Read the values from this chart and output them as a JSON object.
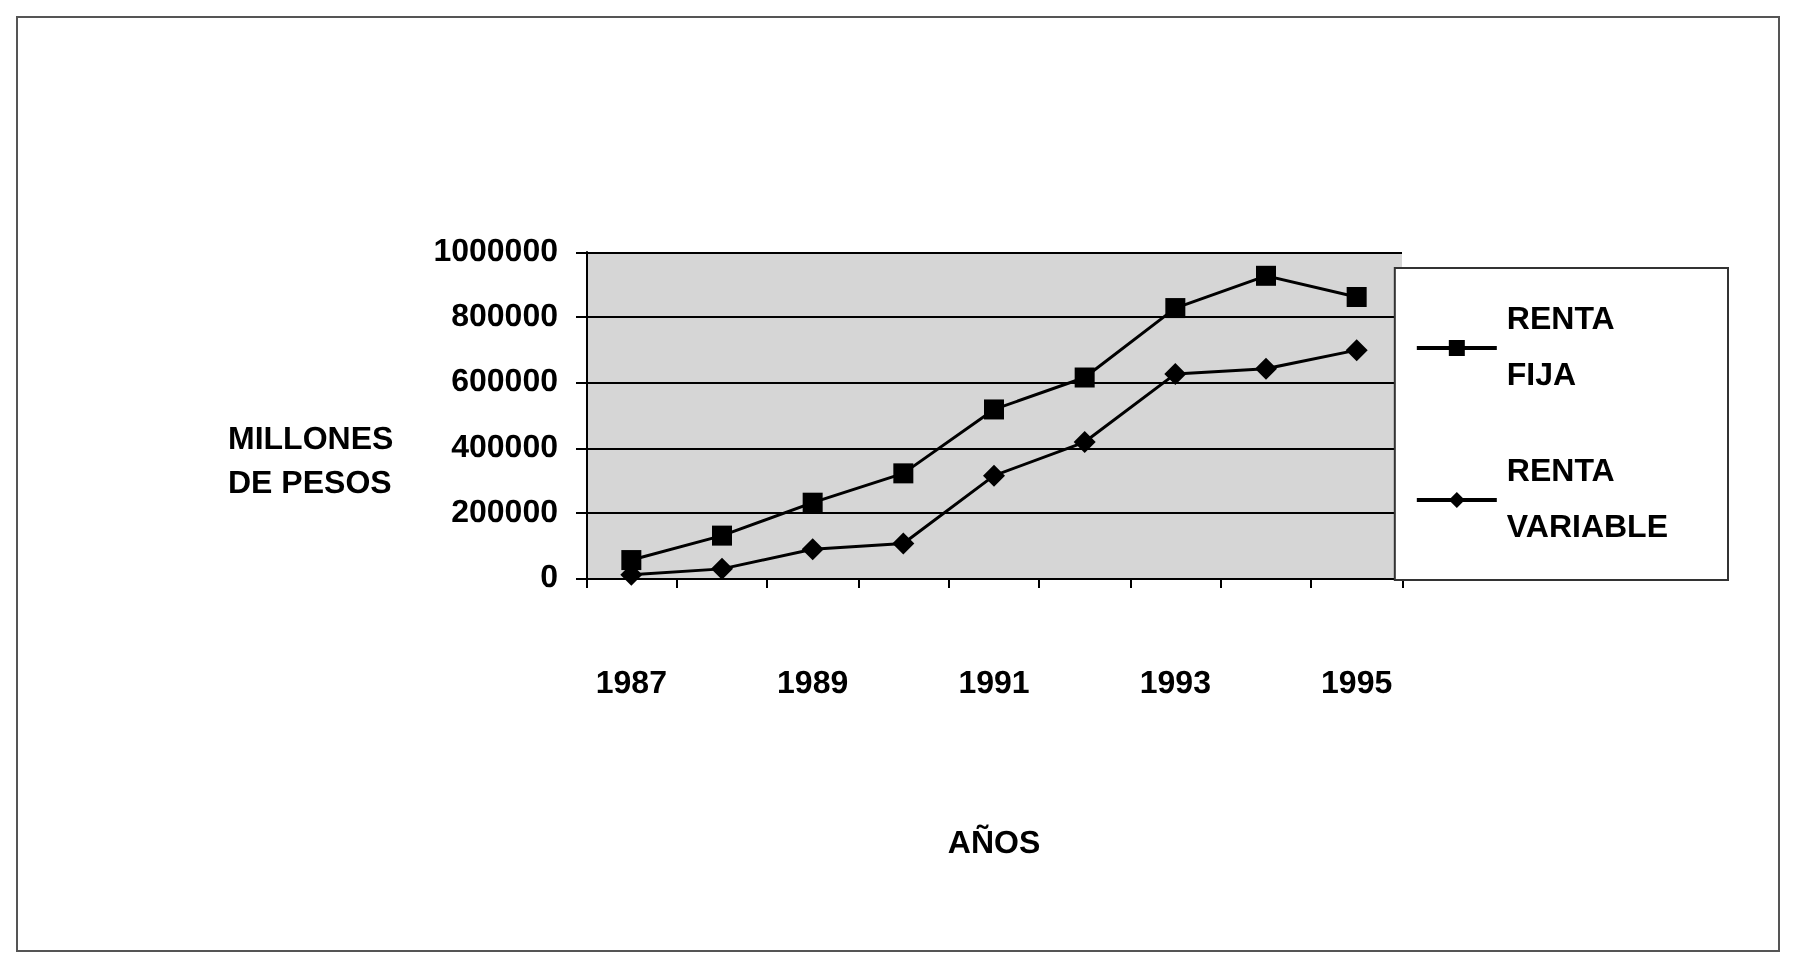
{
  "chart_data": {
    "type": "line",
    "xlabel": "AÑOS",
    "ylabel": "MILLONES\nDE PESOS",
    "categories": [
      "1987",
      null,
      "1989",
      null,
      "1991",
      null,
      "1993",
      null,
      "1995"
    ],
    "series": [
      {
        "name": "RENTA\nFIJA",
        "color": "#000000",
        "marker": "square",
        "values": [
          55000,
          130000,
          231000,
          321000,
          517000,
          615000,
          828000,
          927000,
          862000
        ]
      },
      {
        "name": "RENTA\nVARIABLE",
        "color": "#000000",
        "marker": "diamond",
        "values": [
          10000,
          28000,
          88000,
          106000,
          314000,
          417000,
          626000,
          642000,
          699000
        ]
      }
    ],
    "ylim": [
      0,
      1000000
    ],
    "yticks": [
      0,
      200000,
      400000,
      600000,
      800000,
      1000000
    ],
    "grid": "y",
    "legend": "right",
    "line_style": "solid"
  }
}
